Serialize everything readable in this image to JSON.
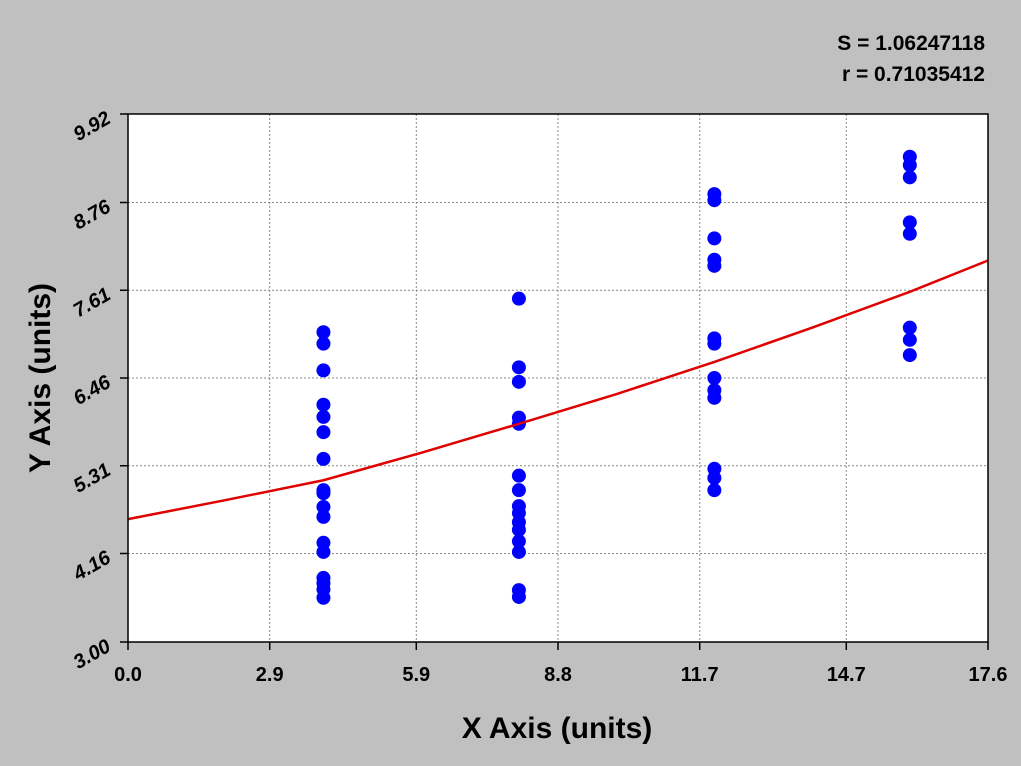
{
  "chart_data": {
    "type": "scatter",
    "annotations": [
      "S = 1.06247118",
      "r = 0.71035412"
    ],
    "x_label": "X Axis (units)",
    "y_label": "Y Axis (units)",
    "xlim": [
      0,
      17.6
    ],
    "ylim": [
      3,
      9.92
    ],
    "xticks": [
      {
        "value": 0,
        "label": "0.0"
      },
      2.9,
      5.9,
      8.8,
      11.7,
      14.7,
      17.6
    ],
    "yticks": [
      {
        "value": 3,
        "label": "3.00"
      },
      4.16,
      5.31,
      6.46,
      7.61,
      8.76,
      9.92
    ],
    "grid": true,
    "series": [
      {
        "style": "markers",
        "color": "#0000ff",
        "x": [
          4,
          4,
          4,
          4,
          4,
          4,
          4,
          4,
          4,
          4,
          4,
          4,
          4,
          4,
          4,
          4,
          4,
          8,
          8,
          8,
          8,
          8,
          8,
          8,
          8,
          8,
          8,
          8,
          8,
          8,
          8,
          8,
          12,
          12,
          12,
          12,
          12,
          12,
          12,
          12,
          12,
          12,
          12,
          12,
          12,
          16,
          16,
          16,
          16,
          16,
          16,
          16,
          16
        ],
        "values": [
          7.06,
          6.91,
          6.56,
          6.11,
          5.95,
          5.75,
          5.4,
          4.99,
          4.95,
          4.77,
          4.64,
          4.3,
          4.18,
          3.84,
          3.77,
          3.69,
          3.58,
          7.5,
          6.6,
          6.41,
          5.94,
          5.86,
          5.18,
          4.99,
          4.78,
          4.69,
          4.57,
          4.47,
          4.32,
          4.18,
          3.68,
          3.59,
          8.87,
          8.79,
          8.29,
          8.01,
          7.93,
          6.98,
          6.91,
          6.46,
          6.3,
          6.2,
          5.27,
          5.15,
          4.99,
          9.36,
          9.25,
          9.09,
          8.5,
          8.35,
          7.12,
          6.96,
          6.76
        ]
      },
      {
        "style": "line",
        "color": "#e00000",
        "x": [
          0,
          2,
          4,
          6,
          8,
          10,
          12,
          14,
          16,
          17.6
        ],
        "values": [
          4.61,
          4.86,
          5.12,
          5.48,
          5.86,
          6.25,
          6.67,
          7.12,
          7.59,
          8.0
        ]
      }
    ]
  }
}
